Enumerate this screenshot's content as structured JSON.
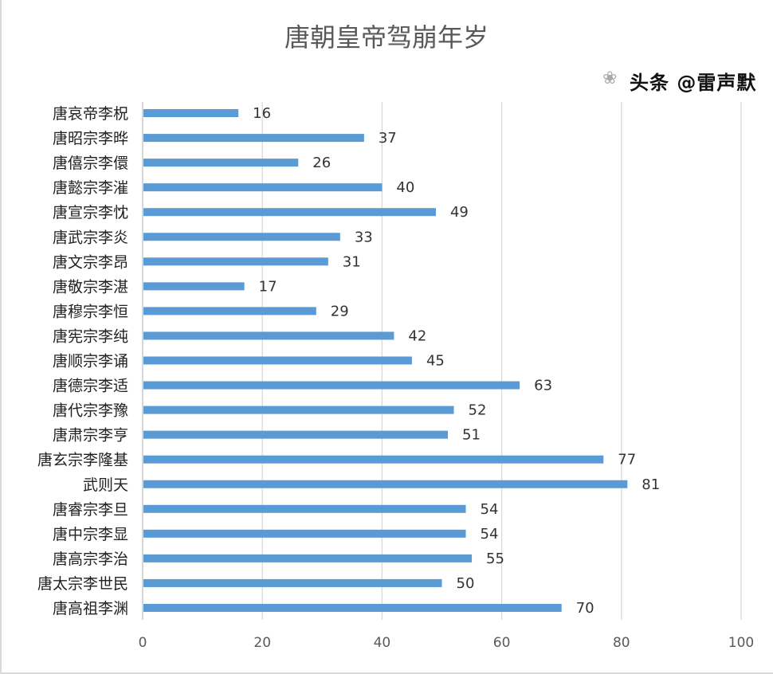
{
  "chart_data": {
    "type": "bar",
    "orientation": "horizontal",
    "title": "唐朝皇帝驾崩年岁",
    "categories": [
      "唐哀帝李柷",
      "唐昭宗李晔",
      "唐僖宗李儇",
      "唐懿宗李漼",
      "唐宣宗李忱",
      "唐武宗李炎",
      "唐文宗李昂",
      "唐敬宗李湛",
      "唐穆宗李恒",
      "唐宪宗李纯",
      "唐顺宗李诵",
      "唐德宗李适",
      "唐代宗李豫",
      "唐肃宗李亨",
      "唐玄宗李隆基",
      "武则天",
      "唐睿宗李旦",
      "唐中宗李显",
      "唐高宗李治",
      "唐太宗李世民",
      "唐高祖李渊"
    ],
    "values": [
      16,
      37,
      26,
      40,
      49,
      33,
      31,
      17,
      29,
      42,
      45,
      63,
      52,
      51,
      77,
      81,
      54,
      54,
      55,
      50,
      70
    ],
    "xlim": [
      0,
      100
    ],
    "xticks": [
      0,
      20,
      40,
      60,
      80,
      100
    ],
    "grid": true,
    "bar_color": "#5b9bd5",
    "data_labels": true
  },
  "watermark": "头条 @雷声默"
}
